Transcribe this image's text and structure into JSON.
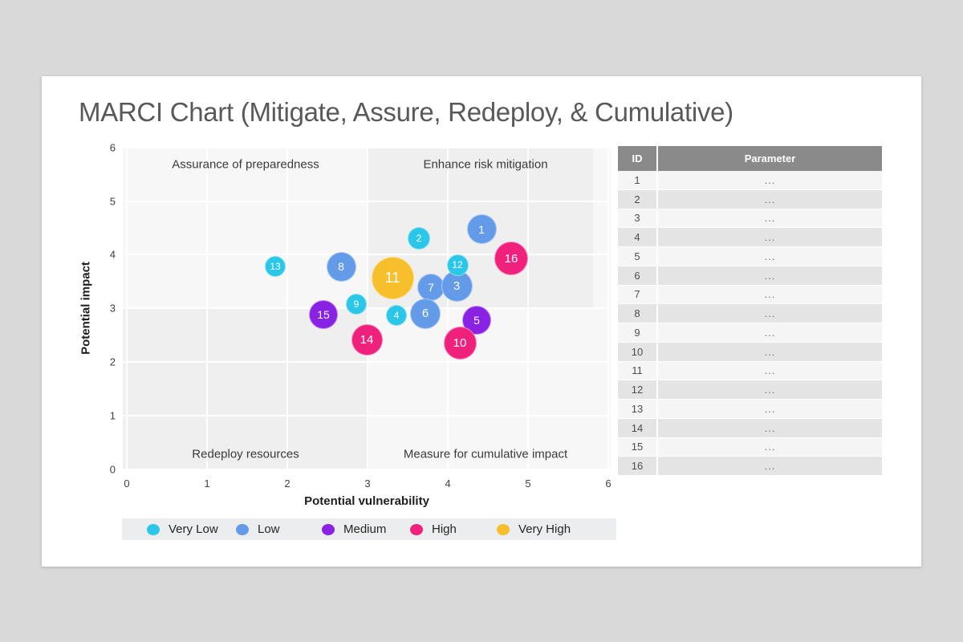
{
  "slide": {
    "title": "MARCI Chart (Mitigate, Assure, Redeploy, & Cumulative)"
  },
  "chart_data": {
    "type": "scatter",
    "subtype": "bubble",
    "xlabel": "Potential vulnerability",
    "ylabel": "Potential impact",
    "xlim": [
      0,
      6
    ],
    "ylim": [
      0,
      6
    ],
    "x_ticks": [
      0,
      1,
      2,
      3,
      4,
      5,
      6
    ],
    "y_ticks": [
      0,
      1,
      2,
      3,
      4,
      5,
      6
    ],
    "grid": true,
    "legend_position": "bottom",
    "quadrant_labels": {
      "top_left": "Assurance of preparedness",
      "top_right": "Enhance risk mitigation",
      "bottom_left": "Redeploy resources",
      "bottom_right": "Measure for cumulative impact"
    },
    "legend": [
      {
        "label": "Very Low",
        "color": "#2bc7e8"
      },
      {
        "label": "Low",
        "color": "#639be9"
      },
      {
        "label": "Medium",
        "color": "#8a22e3"
      },
      {
        "label": "High",
        "color": "#f0217d"
      },
      {
        "label": "Very High",
        "color": "#f6bf2b"
      }
    ],
    "points": [
      {
        "id": 1,
        "x": 4.42,
        "y": 4.47,
        "severity": "Low",
        "r": 18.5,
        "z": 2
      },
      {
        "id": 2,
        "x": 3.64,
        "y": 4.31,
        "severity": "Very Low",
        "r": 14,
        "z": 2
      },
      {
        "id": 3,
        "x": 4.11,
        "y": 3.42,
        "severity": "Low",
        "r": 19.5,
        "z": 4
      },
      {
        "id": 4,
        "x": 3.36,
        "y": 2.87,
        "severity": "Very Low",
        "r": 13,
        "z": 2
      },
      {
        "id": 5,
        "x": 4.36,
        "y": 2.78,
        "severity": "Medium",
        "r": 18,
        "z": 3
      },
      {
        "id": 6,
        "x": 3.72,
        "y": 2.9,
        "severity": "Low",
        "r": 19,
        "z": 5
      },
      {
        "id": 7,
        "x": 3.79,
        "y": 3.39,
        "severity": "Low",
        "r": 17,
        "z": 1
      },
      {
        "id": 8,
        "x": 2.67,
        "y": 3.78,
        "severity": "Low",
        "r": 18.5,
        "z": 2
      },
      {
        "id": 9,
        "x": 2.86,
        "y": 3.08,
        "severity": "Very Low",
        "r": 13,
        "z": 2
      },
      {
        "id": 10,
        "x": 4.15,
        "y": 2.35,
        "severity": "High",
        "r": 20.5,
        "z": 6
      },
      {
        "id": 11,
        "x": 3.31,
        "y": 3.57,
        "severity": "Very High",
        "r": 26.5,
        "z": 3
      },
      {
        "id": 12,
        "x": 4.12,
        "y": 3.81,
        "severity": "Very Low",
        "r": 13.5,
        "z": 5
      },
      {
        "id": 13,
        "x": 1.85,
        "y": 3.78,
        "severity": "Very Low",
        "r": 13,
        "z": 2
      },
      {
        "id": 14,
        "x": 2.99,
        "y": 2.41,
        "severity": "High",
        "r": 19.5,
        "z": 3
      },
      {
        "id": 15,
        "x": 2.45,
        "y": 2.89,
        "severity": "Medium",
        "r": 18,
        "z": 2
      },
      {
        "id": 16,
        "x": 4.79,
        "y": 3.93,
        "severity": "High",
        "r": 21,
        "z": 5
      }
    ]
  },
  "table": {
    "headers": [
      "ID",
      "Parameter"
    ],
    "rows": [
      {
        "id": "1",
        "parameter": "..."
      },
      {
        "id": "2",
        "parameter": "..."
      },
      {
        "id": "3",
        "parameter": "..."
      },
      {
        "id": "4",
        "parameter": "..."
      },
      {
        "id": "5",
        "parameter": "..."
      },
      {
        "id": "6",
        "parameter": "..."
      },
      {
        "id": "7",
        "parameter": "..."
      },
      {
        "id": "8",
        "parameter": "..."
      },
      {
        "id": "9",
        "parameter": "..."
      },
      {
        "id": "10",
        "parameter": "..."
      },
      {
        "id": "11",
        "parameter": "..."
      },
      {
        "id": "12",
        "parameter": "..."
      },
      {
        "id": "13",
        "parameter": "..."
      },
      {
        "id": "14",
        "parameter": "..."
      },
      {
        "id": "15",
        "parameter": "..."
      },
      {
        "id": "16",
        "parameter": "..."
      }
    ]
  }
}
